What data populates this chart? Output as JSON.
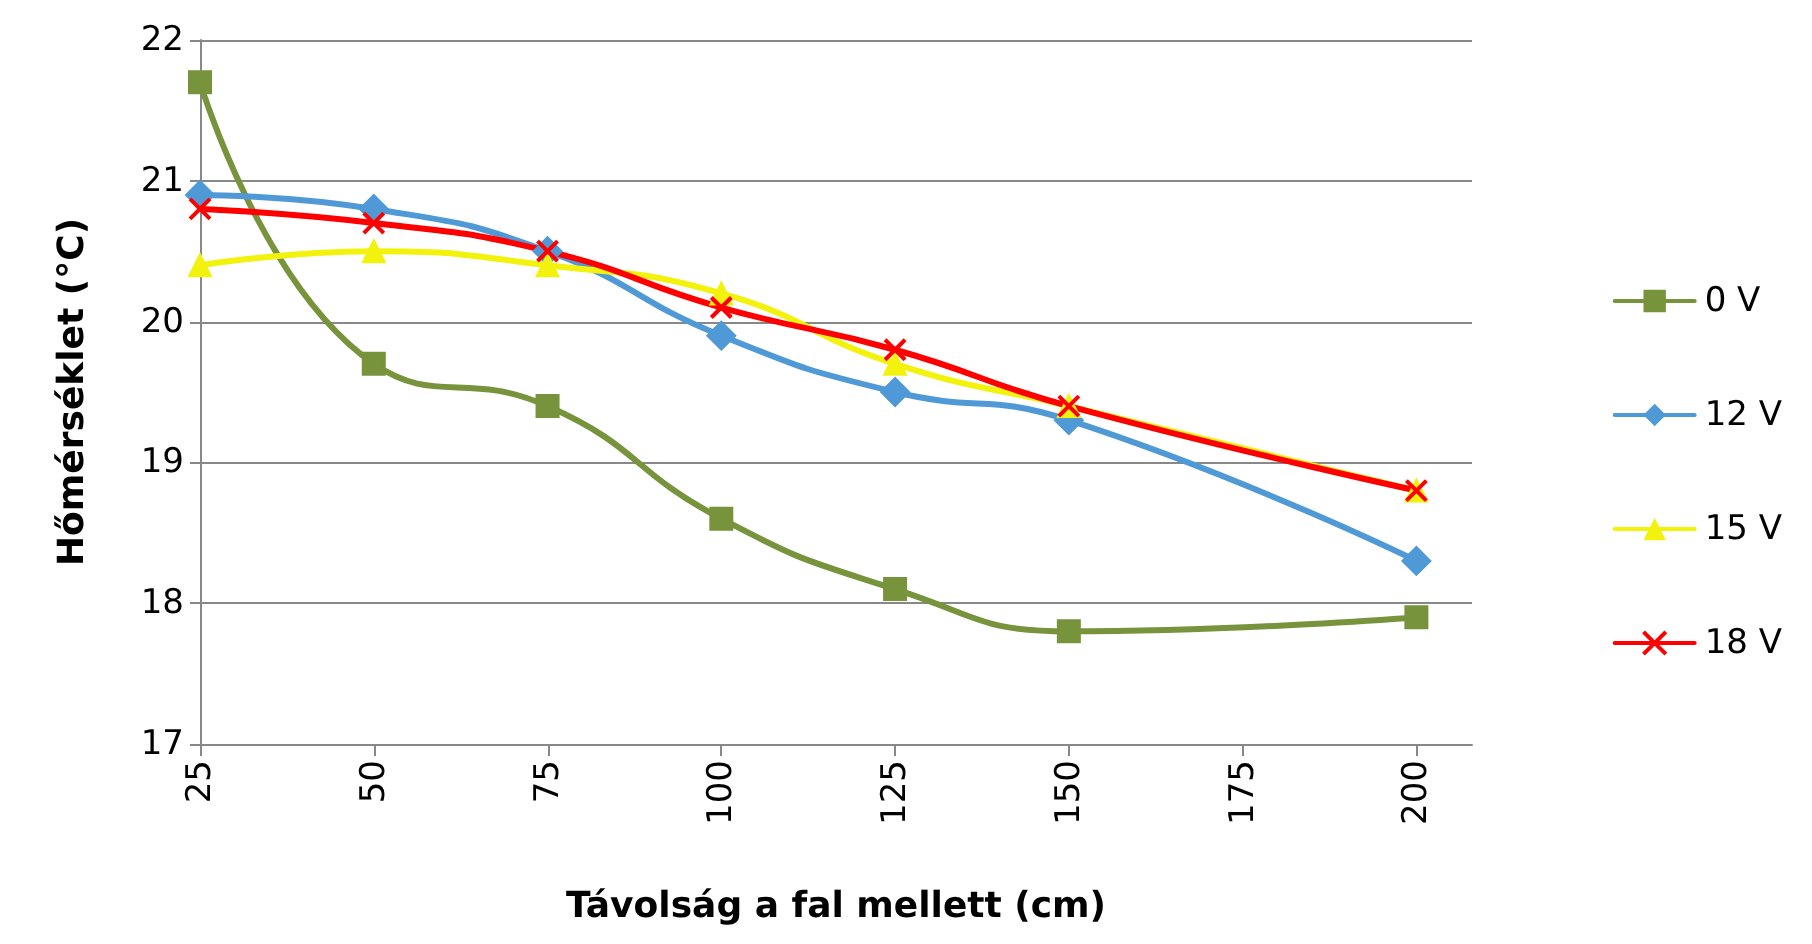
{
  "chart_data": {
    "type": "line",
    "xlabel": "Távolság a fal mellett (cm)",
    "ylabel": "Hőmérséklet (°C)",
    "x": [
      25,
      50,
      75,
      100,
      125,
      150,
      200
    ],
    "xlim": [
      25,
      208
    ],
    "xticks": [
      25,
      50,
      75,
      100,
      125,
      150,
      175,
      200
    ],
    "ylim": [
      17,
      22
    ],
    "yticks": [
      17,
      18,
      19,
      20,
      21,
      22
    ],
    "grid": "y",
    "legend": "right",
    "series": [
      {
        "name": "0 V",
        "color": "#77933c",
        "marker": "square",
        "values": [
          21.7,
          19.7,
          19.4,
          18.6,
          18.1,
          17.8,
          17.9
        ]
      },
      {
        "name": "12 V",
        "color": "#4f9ad6",
        "marker": "diamond",
        "values": [
          20.9,
          20.8,
          20.5,
          19.9,
          19.5,
          19.3,
          18.3
        ]
      },
      {
        "name": "15 V",
        "color": "#f2f20d",
        "marker": "triangle",
        "values": [
          20.4,
          20.5,
          20.4,
          20.2,
          19.7,
          19.4,
          18.8
        ]
      },
      {
        "name": "18 V",
        "color": "#ff0000",
        "marker": "cross",
        "values": [
          20.8,
          20.7,
          20.5,
          20.1,
          19.8,
          19.4,
          18.8
        ]
      }
    ]
  }
}
